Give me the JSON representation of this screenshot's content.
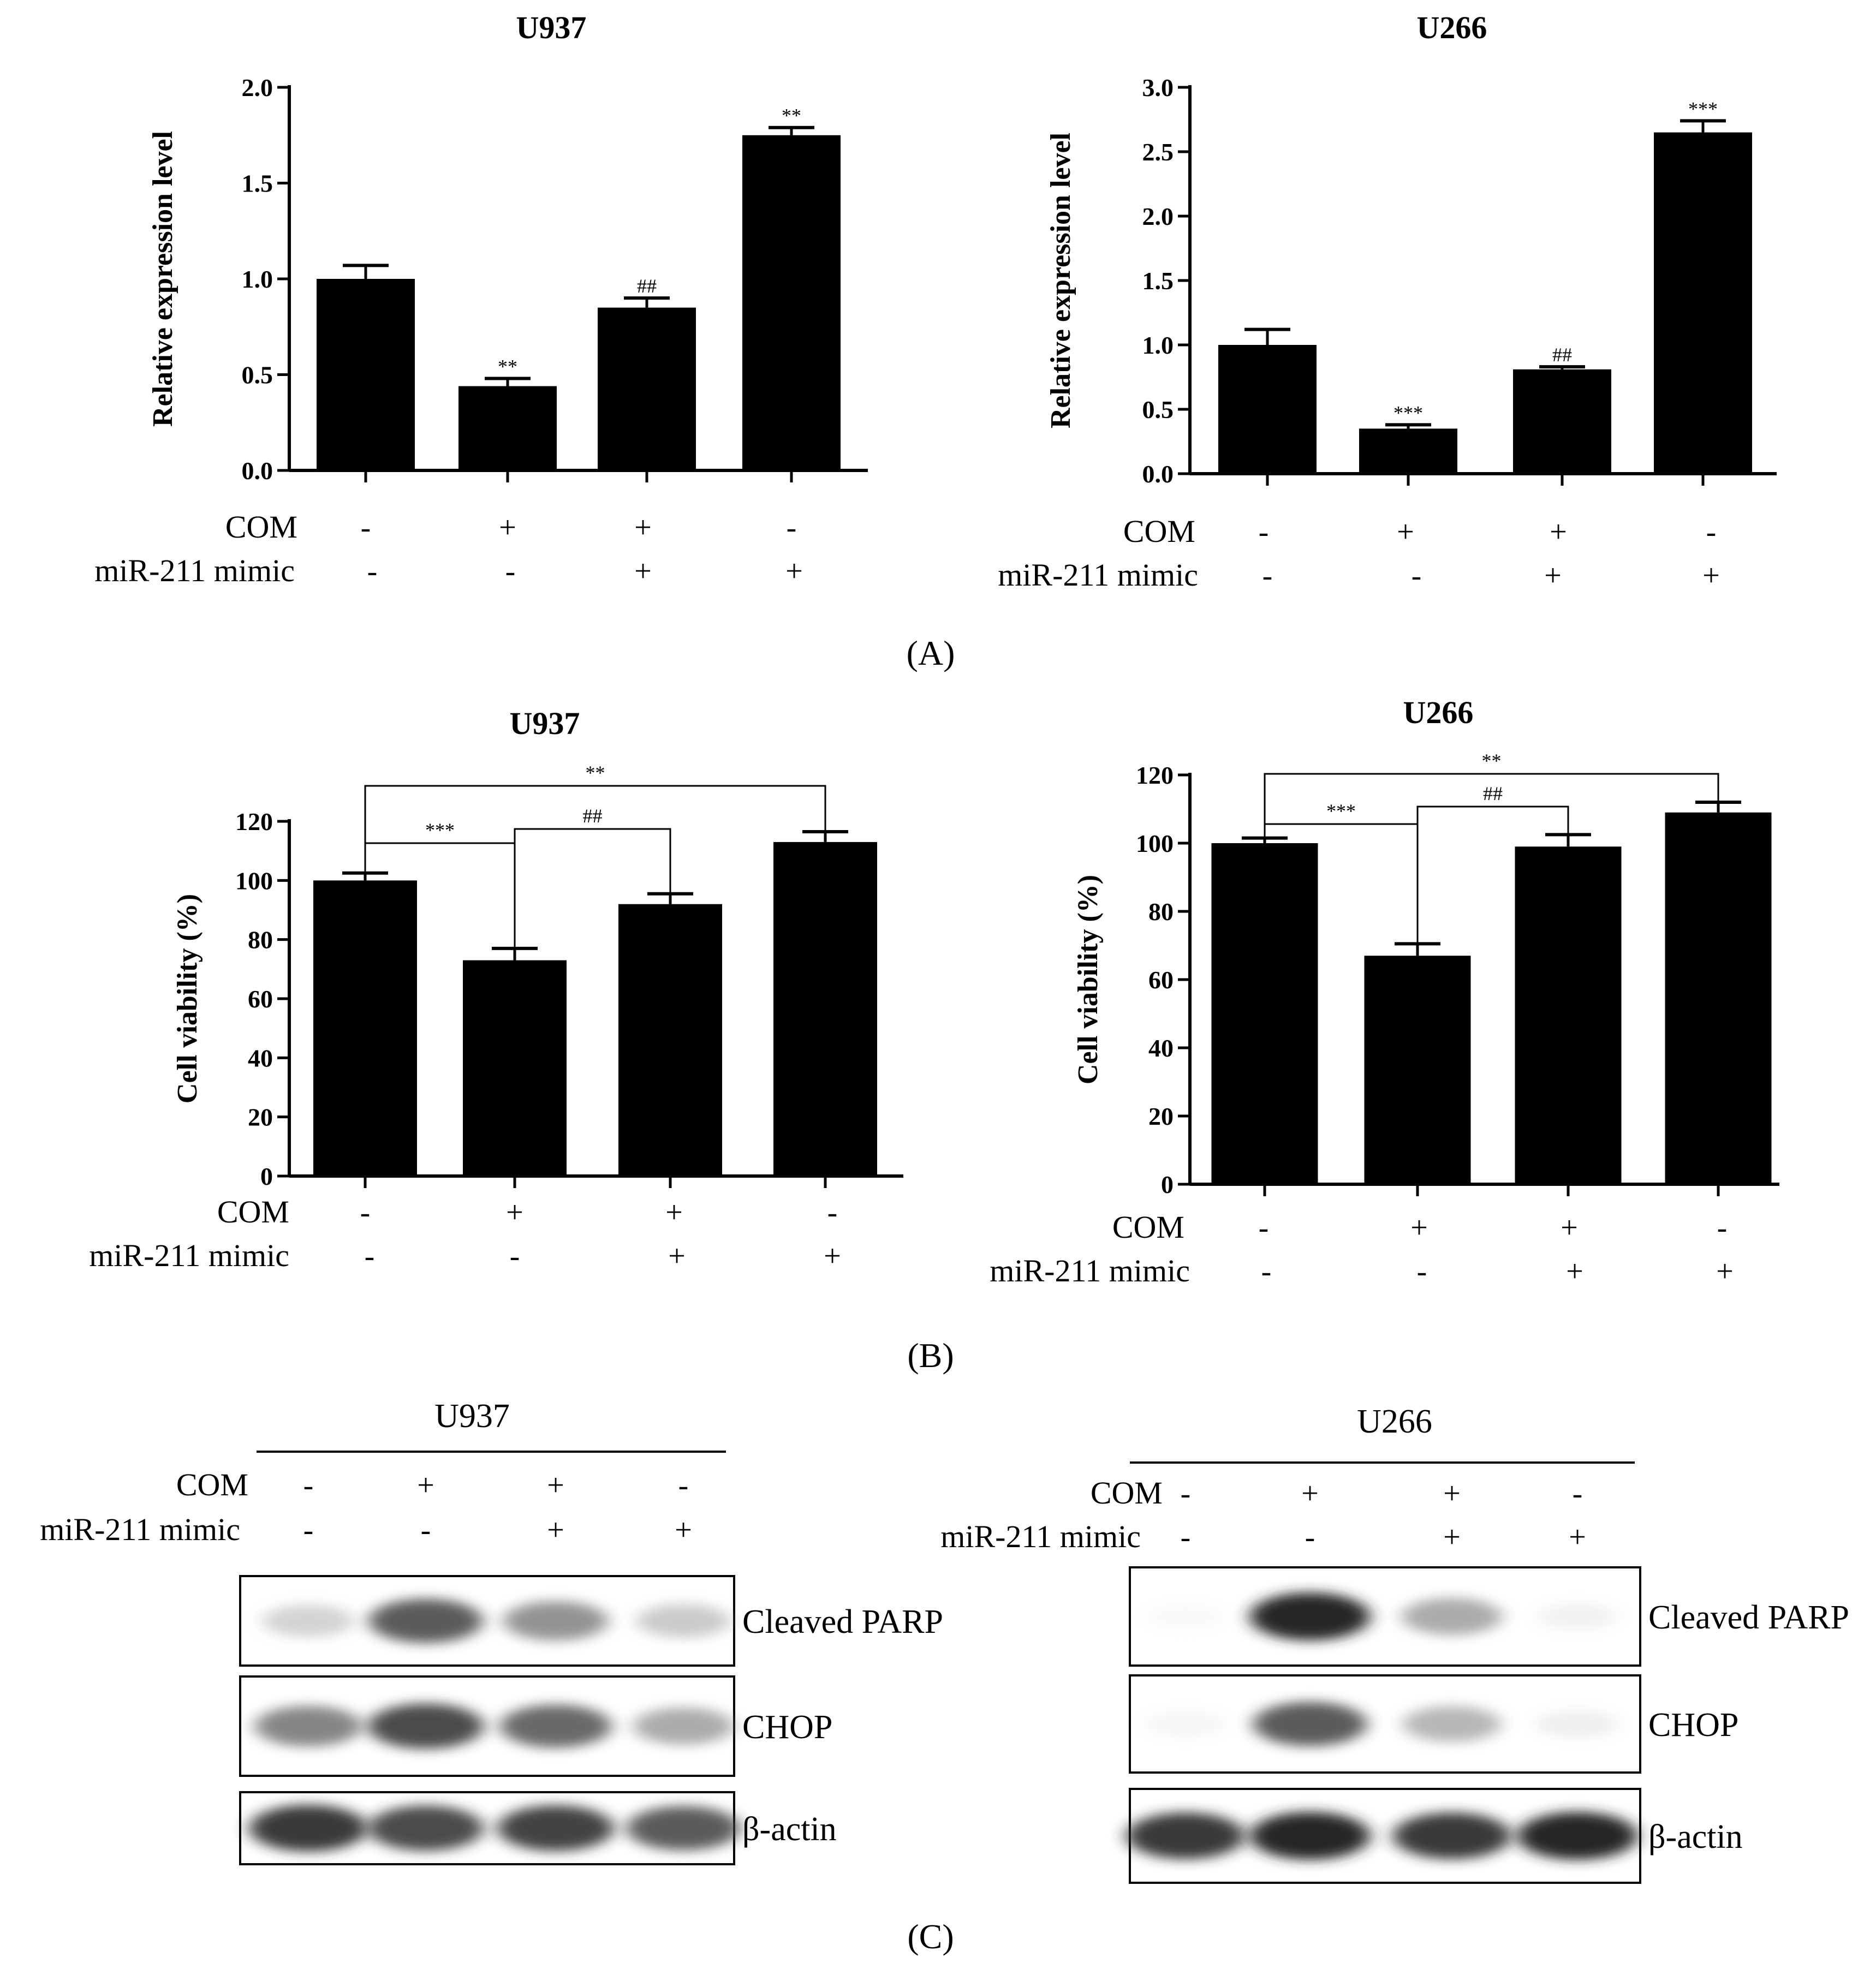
{
  "panel_labels": [
    "(A)",
    "(B)",
    "(C)"
  ],
  "row_labels": {
    "com": "COM",
    "mimic": "miR-211 mimic"
  },
  "conditions": {
    "com": [
      "-",
      "+",
      "+",
      "-"
    ],
    "mimic": [
      "-",
      "-",
      "+",
      "+"
    ]
  },
  "chart_data": [
    {
      "id": "A-U937",
      "type": "bar",
      "title": "U937",
      "ylabel": "Relative expression level",
      "xlabel": "",
      "ylim": [
        0,
        2.0
      ],
      "yticks": [
        "0.0",
        "0.5",
        "1.0",
        "1.5",
        "2.0"
      ],
      "tick_values": [
        0,
        0.5,
        1.0,
        1.5,
        2.0
      ],
      "categories": [
        "1",
        "2",
        "3",
        "4"
      ],
      "values": [
        1.0,
        0.44,
        0.85,
        1.75
      ],
      "errors": [
        0.07,
        0.04,
        0.05,
        0.04
      ],
      "annotations": [
        "",
        "**",
        "##",
        "**"
      ],
      "grid": false,
      "color": "#000000"
    },
    {
      "id": "A-U266",
      "type": "bar",
      "title": "U266",
      "ylabel": "Relative expression level",
      "xlabel": "",
      "ylim": [
        0,
        3.0
      ],
      "yticks": [
        "0.0",
        "0.5",
        "1.0",
        "1.5",
        "2.0",
        "2.5",
        "3.0"
      ],
      "tick_values": [
        0,
        0.5,
        1.0,
        1.5,
        2.0,
        2.5,
        3.0
      ],
      "categories": [
        "1",
        "2",
        "3",
        "4"
      ],
      "values": [
        1.0,
        0.35,
        0.81,
        2.65
      ],
      "errors": [
        0.12,
        0.03,
        0.02,
        0.09
      ],
      "annotations": [
        "",
        "***",
        "##",
        "***"
      ],
      "grid": false,
      "color": "#000000"
    },
    {
      "id": "B-U937",
      "type": "bar",
      "title": "U937",
      "ylabel": "Cell viability (%)",
      "xlabel": "",
      "ylim": [
        0,
        120
      ],
      "yticks": [
        "0",
        "20",
        "40",
        "60",
        "80",
        "100",
        "120"
      ],
      "tick_values": [
        0,
        20,
        40,
        60,
        80,
        100,
        120
      ],
      "categories": [
        "1",
        "2",
        "3",
        "4"
      ],
      "values": [
        100,
        73,
        92,
        113
      ],
      "errors": [
        2.5,
        4,
        3.5,
        3.5
      ],
      "annotations": [],
      "brackets": [
        {
          "from": 0,
          "to": 1,
          "label": "***"
        },
        {
          "from": 1,
          "to": 2,
          "label": "##"
        },
        {
          "from": 0,
          "to": 3,
          "label": "**"
        }
      ],
      "grid": false,
      "color": "#000000"
    },
    {
      "id": "B-U266",
      "type": "bar",
      "title": "U266",
      "ylabel": "Cell viability (%)",
      "xlabel": "",
      "ylim": [
        0,
        120
      ],
      "yticks": [
        "0",
        "20",
        "40",
        "60",
        "80",
        "100",
        "120"
      ],
      "tick_values": [
        0,
        20,
        40,
        60,
        80,
        100,
        120
      ],
      "categories": [
        "1",
        "2",
        "3",
        "4"
      ],
      "values": [
        100,
        67,
        99,
        109
      ],
      "errors": [
        1.5,
        3.5,
        3.5,
        3
      ],
      "annotations": [],
      "brackets": [
        {
          "from": 0,
          "to": 1,
          "label": "***"
        },
        {
          "from": 1,
          "to": 2,
          "label": "##"
        },
        {
          "from": 0,
          "to": 3,
          "label": "**"
        }
      ],
      "grid": false,
      "color": "#000000"
    }
  ],
  "western_blots": [
    {
      "id": "C-U937",
      "title": "U937",
      "rows": [
        {
          "label": "Cleaved PARP",
          "intensity": [
            0.35,
            0.85,
            0.65,
            0.4
          ]
        },
        {
          "label": "CHOP",
          "intensity": [
            0.7,
            0.9,
            0.8,
            0.55
          ]
        },
        {
          "label": "β-actin",
          "intensity": [
            0.95,
            0.9,
            0.92,
            0.85
          ]
        }
      ]
    },
    {
      "id": "C-U266",
      "title": "U266",
      "rows": [
        {
          "label": "Cleaved PARP",
          "intensity": [
            0.04,
            1.0,
            0.55,
            0.12
          ]
        },
        {
          "label": "CHOP",
          "intensity": [
            0.08,
            0.85,
            0.5,
            0.15
          ]
        },
        {
          "label": "β-actin",
          "intensity": [
            0.95,
            1.0,
            0.95,
            1.0
          ]
        }
      ]
    }
  ]
}
